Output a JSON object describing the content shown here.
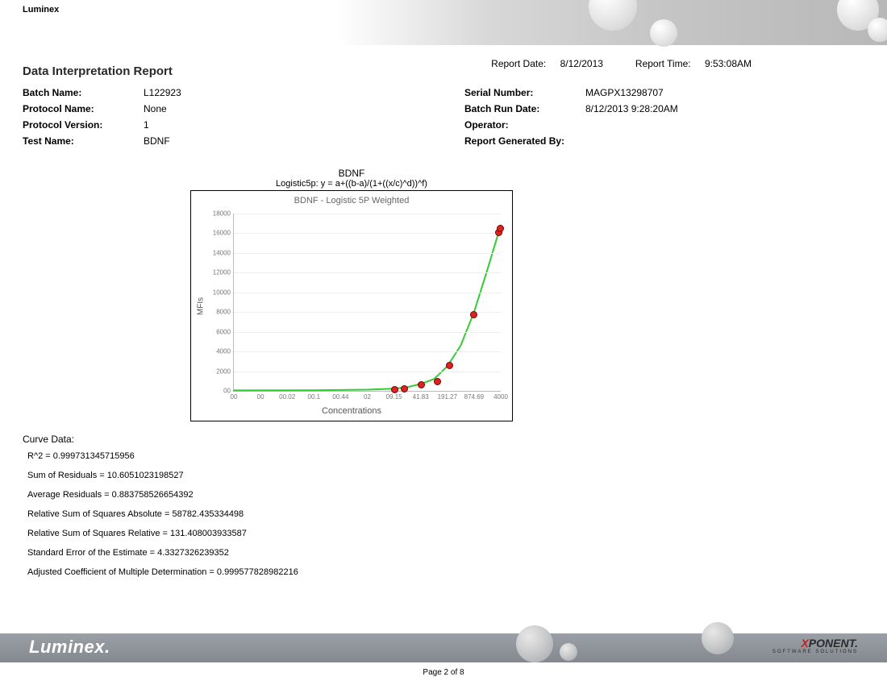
{
  "brand": "Luminex",
  "report_title": "Data Interpretation Report",
  "report_date_label": "Report Date:",
  "report_date": "8/12/2013",
  "report_time_label": "Report Time:",
  "report_time": "9:53:08AM",
  "meta_left": [
    {
      "label": "Batch Name:",
      "value": "L122923"
    },
    {
      "label": "Protocol Name:",
      "value": "None"
    },
    {
      "label": "Protocol Version:",
      "value": "1"
    },
    {
      "label": "Test Name:",
      "value": "BDNF"
    }
  ],
  "meta_right": [
    {
      "label": "Serial Number:",
      "value": "MAGPX13298707"
    },
    {
      "label": "Batch Run Date:",
      "value": "8/12/2013   9:28:20AM"
    },
    {
      "label": "Operator:",
      "value": ""
    },
    {
      "label": "Report Generated By:",
      "value": ""
    }
  ],
  "chart": {
    "type": "line",
    "title_top": "BDNF",
    "title_formula": "Logistic5p: y = a+((b-a)/(1+((x/c)^d))^f)",
    "title_inner": "BDNF - Logistic 5P Weighted",
    "ylabel": "MFIs",
    "xlabel": "Concentrations",
    "ylim": [
      0,
      18000
    ],
    "ytick_step": 2000,
    "ytick_labels": [
      "00",
      "2000",
      "4000",
      "6000",
      "8000",
      "10000",
      "12000",
      "14000",
      "16000",
      "18000"
    ],
    "xtick_labels": [
      "00",
      "00",
      "00.02",
      "00.1",
      "00.44",
      "02",
      "09.15",
      "41.83",
      "191.27",
      "874.69",
      "4000"
    ],
    "grid_color": "#eeeeee",
    "axis_color": "#bbbbbb",
    "curve_color": "#33cc33",
    "curve_width": 2,
    "marker_fill": "#dd2222",
    "marker_border": "#7a0000",
    "marker_size": 7,
    "background_color": "#ffffff",
    "points": [
      {
        "xi": 6,
        "y": 200
      },
      {
        "xi": 6.35,
        "y": 300
      },
      {
        "xi": 7,
        "y": 700
      },
      {
        "xi": 7.6,
        "y": 1000
      },
      {
        "xi": 8.05,
        "y": 2700
      },
      {
        "xi": 8.95,
        "y": 7800
      },
      {
        "xi": 9.9,
        "y": 16200
      },
      {
        "xi": 9.95,
        "y": 16600
      }
    ],
    "curve_path": [
      {
        "xi": 0,
        "y": 50
      },
      {
        "xi": 3,
        "y": 60
      },
      {
        "xi": 5,
        "y": 120
      },
      {
        "xi": 6,
        "y": 220
      },
      {
        "xi": 6.5,
        "y": 380
      },
      {
        "xi": 7,
        "y": 700
      },
      {
        "xi": 7.5,
        "y": 1200
      },
      {
        "xi": 8,
        "y": 2500
      },
      {
        "xi": 8.5,
        "y": 4600
      },
      {
        "xi": 9,
        "y": 8000
      },
      {
        "xi": 9.5,
        "y": 12300
      },
      {
        "xi": 10,
        "y": 16800
      }
    ]
  },
  "curve_data_title": "Curve  Data:",
  "curve_data_lines": [
    "R^2 = 0.999731345715956",
    "Sum of Residuals = 10.6051023198527",
    "Average Residuals = 0.883758526654392",
    "Relative Sum of Squares Absolute = 58782.435334498",
    "Relative Sum of Squares Relative = 131.408003933587",
    "Standard Error of the Estimate = 4.3327326239352",
    "Adjusted Coefficient of Multiple Determination = 0.999577828982216"
  ],
  "footer_brand": "Luminex.",
  "footer_product_prefix": "X",
  "footer_product_rest": "PONENT.",
  "footer_product_sub": "SOFTWARE SOLUTIONS",
  "page_label": "Page 2 of 8"
}
